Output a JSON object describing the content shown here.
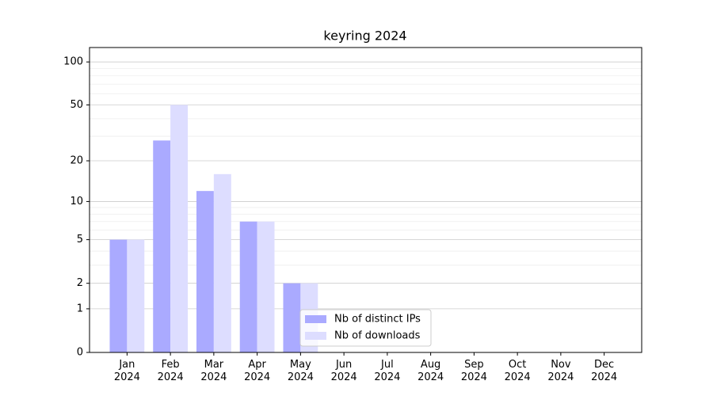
{
  "chart_data": {
    "type": "bar",
    "title": "keyring 2024",
    "categories": [
      "Jan\n2024",
      "Feb\n2024",
      "Mar\n2024",
      "Apr\n2024",
      "May\n2024",
      "Jun\n2024",
      "Jul\n2024",
      "Aug\n2024",
      "Sep\n2024",
      "Oct\n2024",
      "Nov\n2024",
      "Dec\n2024"
    ],
    "series": [
      {
        "name": "Nb of distinct IPs",
        "color": "#aaaaff",
        "values": [
          5,
          28,
          12,
          7,
          2,
          0,
          0,
          0,
          0,
          0,
          0,
          0
        ]
      },
      {
        "name": "Nb of downloads",
        "color": "#ddddff",
        "values": [
          5,
          50,
          16,
          7,
          2,
          0,
          0,
          0,
          0,
          0,
          0,
          0
        ]
      }
    ],
    "yscale": "log1p",
    "ylim": [
      0,
      126
    ],
    "yticks": [
      0,
      1,
      2,
      5,
      10,
      20,
      50,
      100
    ],
    "minor_yticks": [
      3,
      4,
      6,
      7,
      8,
      9,
      30,
      40,
      60,
      70,
      80,
      90
    ],
    "grid": true,
    "legend": "lower center"
  }
}
